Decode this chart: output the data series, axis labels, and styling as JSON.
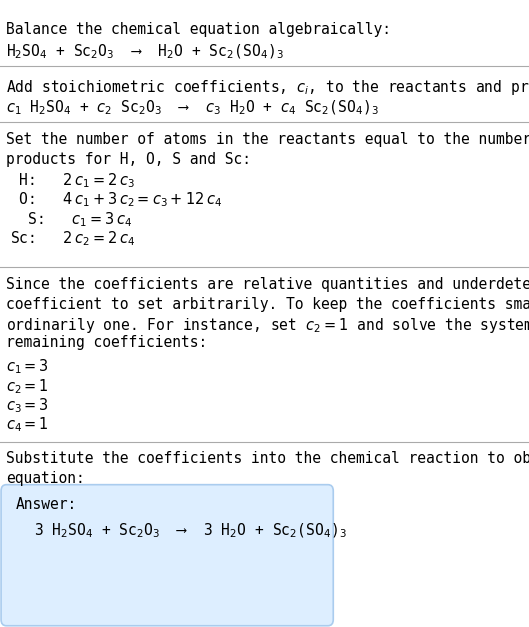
{
  "title": "Balance the chemical equation algebraically:",
  "eq1": "H$_2$SO$_4$ + Sc$_2$O$_3$  ⟶  H$_2$O + Sc$_2$(SO$_4$)$_3$",
  "section2_title": "Add stoichiometric coefficients, $c_i$, to the reactants and products:",
  "eq2": "$c_1$ H$_2$SO$_4$ + $c_2$ Sc$_2$O$_3$  ⟶  $c_3$ H$_2$O + $c_4$ Sc$_2$(SO$_4$)$_3$",
  "section3_title": "Set the number of atoms in the reactants equal to the number of atoms in the\nproducts for H, O, S and Sc:",
  "atoms": [
    " H:   $2\\,c_1 = 2\\,c_3$",
    " O:   $4\\,c_1 + 3\\,c_2 = c_3 + 12\\,c_4$",
    "  S:   $c_1 = 3\\,c_4$",
    "Sc:   $2\\,c_2 = 2\\,c_4$"
  ],
  "section4_text": "Since the coefficients are relative quantities and underdetermined, choose a\ncoefficient to set arbitrarily. To keep the coefficients small, the arbitrary value is\nordinarily one. For instance, set $c_2 = 1$ and solve the system of equations for the\nremaining coefficients:",
  "coeffs": [
    "$c_1 = 3$",
    "$c_2 = 1$",
    "$c_3 = 3$",
    "$c_4 = 1$"
  ],
  "section5_title": "Substitute the coefficients into the chemical reaction to obtain the balanced\nequation:",
  "answer_label": "Answer:",
  "answer_eq": "3 H$_2$SO$_4$ + Sc$_2$O$_3$  ⟶  3 H$_2$O + Sc$_2$(SO$_4$)$_3$",
  "bg_color": "#ffffff",
  "text_color": "#000000",
  "answer_box_color": "#ddeeff",
  "answer_box_border": "#aaccee",
  "font_size": 10.5,
  "title_font_size": 10.5,
  "mono_font": "DejaVu Sans Mono"
}
